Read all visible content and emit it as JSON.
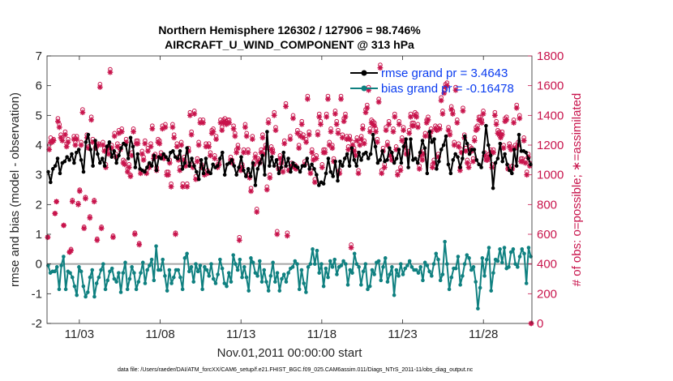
{
  "chart_data": {
    "type": "line",
    "title_line1": "Northern Hemisphere 126302 / 127906 = 98.746%",
    "title_line2": "AIRCRAFT_U_WIND_COMPONENT @ 313 hPa",
    "xlabel": "Nov.01,2011 00:00:00 start",
    "ylabel_left": "rmse and bias (model - observation)",
    "ylabel_right": "# of obs: o=possible; ∗=assimilated",
    "x_tick_labels": [
      "11/03",
      "11/08",
      "11/13",
      "11/18",
      "11/23",
      "11/28"
    ],
    "x_tick_days": [
      3,
      8,
      13,
      18,
      23,
      28
    ],
    "xlim": [
      1.0,
      31.0
    ],
    "ylim_left": [
      -2,
      7
    ],
    "y_ticks_left": [
      "-2",
      "-1",
      "0",
      "1",
      "2",
      "3",
      "4",
      "5",
      "6",
      "7"
    ],
    "ylim_right": [
      0,
      1800
    ],
    "y_ticks_right": [
      "0",
      "200",
      "400",
      "600",
      "800",
      "1000",
      "1200",
      "1400",
      "1600",
      "1800"
    ],
    "legend": {
      "position": "top-right",
      "rmse_label": "rmse grand pr = 3.4643",
      "bias_label": "bias grand pr = -0.16478"
    },
    "colors": {
      "rmse": "#000000",
      "bias": "#0f8080",
      "obs": "#c8144c",
      "zero_line": "#a6a6a6"
    },
    "footer": "data file: /Users/raeder/DAI/ATM_forcXX/CAM6_setup/f.e21.FHIST_BGC.f09_025.CAM6assim.011/Diags_NTrS_2011-11/obs_diag_output.nc",
    "series": [
      {
        "name": "rmse",
        "values": [
          3.1,
          2.75,
          3.2,
          3.3,
          3.55,
          3.05,
          3.4,
          3.45,
          3.6,
          3.5,
          3.7,
          3.4,
          3.75,
          3.85,
          3.5,
          3.1,
          4.1,
          4.35,
          3.85,
          3.3,
          4.15,
          3.7,
          3.4,
          3.55,
          3.3,
          3.95,
          4.1,
          3.6,
          3.8,
          3.4,
          3.65,
          3.9,
          4.05,
          4.0,
          3.55,
          4.25,
          3.95,
          3.25,
          3.7,
          3.2,
          3.15,
          3.1,
          3.25,
          3.4,
          3.3,
          3.65,
          3.15,
          3.6,
          3.55,
          3.7,
          3.6,
          3.5,
          3.75,
          3.8,
          3.6,
          3.55,
          3.8,
          3.2,
          3.4,
          3.9,
          3.3,
          3.55,
          3.3,
          3.1,
          2.85,
          3.5,
          3.05,
          3.55,
          3.1,
          3.05,
          3.35,
          3.25,
          3.3,
          3.55,
          3.75,
          3.0,
          3.35,
          3.4,
          3.5,
          3.3,
          3.0,
          3.25,
          3.6,
          3.15,
          2.95,
          3.2,
          2.95,
          3.4,
          2.65,
          3.2,
          3.4,
          3.65,
          3.0,
          4.45,
          3.3,
          3.6,
          3.3,
          3.5,
          3.05,
          3.25,
          3.75,
          3.3,
          3.55,
          3.1,
          3.4,
          3.3,
          3.25,
          3.1,
          3.3,
          3.3,
          3.55,
          3.2,
          3.35,
          3.2,
          3.0,
          2.65,
          2.75,
          2.7,
          3.05,
          3.55,
          3.1,
          2.95,
          3.45,
          2.8,
          3.45,
          3.3,
          3.55,
          3.7,
          3.3,
          3.9,
          3.5,
          3.3,
          3.75,
          3.5,
          3.7,
          3.75,
          3.55,
          3.7,
          4.35,
          3.95,
          3.4,
          3.5,
          3.8,
          3.45,
          3.5,
          3.9,
          3.75,
          3.4,
          3.55,
          3.85,
          3.4,
          3.95,
          4.2,
          3.25,
          4.2,
          3.5,
          3.55,
          3.4,
          3.75,
          4.15,
          3.9,
          3.05,
          4.45,
          4.1,
          4.2,
          3.2,
          3.45,
          3.85,
          4.0,
          4.3,
          3.35,
          3.05,
          3.5,
          3.7,
          3.6,
          3.25,
          3.55,
          4.3,
          4.05,
          3.7,
          3.85,
          3.85,
          3.5,
          3.35,
          3.25,
          3.75,
          4.65,
          4.0,
          3.65,
          2.55,
          3.4,
          3.55,
          4.05,
          3.45,
          3.7,
          3.35,
          3.15,
          3.05,
          3.85,
          3.3,
          4.35,
          3.8,
          3.8,
          3.75,
          3.55,
          3.35
        ]
      },
      {
        "name": "bias",
        "values": [
          -0.05,
          -0.3,
          -0.25,
          -0.25,
          -0.1,
          -0.85,
          -0.05,
          0.25,
          -0.85,
          -0.25,
          -0.3,
          -0.45,
          -0.75,
          -1.05,
          -0.1,
          -0.25,
          -0.75,
          -1.1,
          -0.95,
          -0.45,
          -0.2,
          -1.1,
          -0.65,
          -0.45,
          -0.2,
          0.0,
          -0.85,
          -0.55,
          -0.25,
          -0.15,
          -0.5,
          -0.6,
          -0.3,
          -0.95,
          -0.3,
          0.05,
          -0.85,
          -0.5,
          -0.1,
          -0.3,
          -0.85,
          -0.6,
          -0.3,
          0.05,
          -0.65,
          -0.2,
          -0.05,
          0.15,
          -0.55,
          0.6,
          -0.2,
          -0.2,
          0.15,
          -0.4,
          -0.9,
          -0.2,
          -0.65,
          -0.45,
          -0.2,
          -0.2,
          -0.45,
          -0.85,
          0.2,
          0.35,
          -0.25,
          -0.1,
          -0.6,
          0.0,
          -0.25,
          -0.05,
          -0.85,
          -0.1,
          -0.2,
          -0.4,
          0.0,
          -0.5,
          -0.65,
          -0.35,
          0.15,
          -0.15,
          -0.65,
          -0.75,
          -0.3,
          -0.6,
          0.3,
          0.0,
          -0.2,
          0.15,
          -0.45,
          -0.1,
          -0.45,
          -0.9,
          0.2,
          0.05,
          -0.3,
          -0.4,
          0.1,
          -0.6,
          -0.2,
          -0.6,
          -0.9,
          -0.4,
          0.05,
          -0.6,
          -0.3,
          -0.9,
          -0.5,
          -0.35,
          -0.6,
          -0.3,
          -0.15,
          -0.1,
          0.1,
          0.0,
          -0.85,
          -0.2,
          -0.65,
          -0.95,
          -0.1,
          0.0,
          0.5,
          0.0,
          0.45,
          -0.3,
          0.0,
          -0.75,
          -0.15,
          -0.45,
          0.1,
          -0.1,
          0.15,
          -0.35,
          -0.1,
          -0.05,
          0.1,
          0.0,
          -0.7,
          -0.2,
          -0.3,
          0.35,
          0.0,
          -0.1,
          -0.7,
          -0.25,
          0.0,
          -0.85,
          -0.75,
          -0.2,
          -0.35,
          0.05,
          0.1,
          -0.55,
          -0.1,
          0.2,
          -0.6,
          -0.35,
          -0.1,
          -1.05,
          -0.2,
          -0.4,
          0.0,
          -0.35,
          -0.15,
          -0.05,
          0.1,
          -0.1,
          -0.2,
          -0.2,
          -0.3,
          -0.1,
          -0.55,
          0.05,
          -0.05,
          -0.25,
          -0.4,
          0.0,
          0.35,
          0.15,
          -0.55,
          -0.35,
          0.75,
          0.0,
          -0.85,
          -0.45,
          -0.15,
          -0.15,
          0.25,
          -0.7,
          -0.4,
          0.0,
          0.3,
          0.2,
          -0.2,
          -0.1,
          -0.6,
          -1.5,
          -0.8,
          0.2,
          -0.4,
          0.15,
          0.55,
          -0.9,
          -0.3,
          0.15,
          0.1,
          0.5,
          0.05,
          0.55,
          -0.15,
          -0.1,
          0.4,
          0.5,
          0.0,
          -0.1,
          0.25,
          0.5,
          0.35,
          -0.65,
          0.55,
          0.25
        ]
      },
      {
        "name": "obs_assimilated",
        "values": [
          580,
          1170,
          1220,
          1220,
          1230,
          740,
          820,
          1360,
          1320,
          1250,
          1230,
          660,
          1270,
          1190,
          1220,
          480,
          490,
          820,
          1240,
          1200,
          1240,
          800,
          890,
          1200,
          1420,
          640,
          840,
          1250,
          1180,
          710,
          1370,
          1220,
          820,
          1180,
          560,
          1200,
          1590,
          640,
          1200,
          1160,
          1050,
          1170,
          1140,
          1690,
          1180,
          580,
          1260,
          1120,
          1190,
          1280,
          1170,
          1290,
          1080,
          1070,
          1220,
          1020,
          1050,
          990,
          1130,
          1290,
          600,
          1210,
          1210,
          530,
          1010,
          1140,
          1100,
          1210,
          1010,
          1160,
          1050,
          1190,
          1310,
          1110,
          1120,
          1030,
          1220,
          1210,
          1130,
          1310,
          1110,
          1320,
          1000,
          1000,
          1080,
          920,
          1320,
          1250,
          600,
          1190,
          1100,
          1030,
          1200,
          920,
          1100,
          1060,
          920,
          1160,
          1400,
          1270,
          1050,
          1410,
          970,
          1090,
          1200,
          1350,
          1050,
          1350,
          1000,
          1190,
          1010,
          1190,
          1130,
          1280,
          1290,
          1110,
          1240,
          1050,
          1070,
          1350,
          1300,
          1350,
          1360,
          1340,
          1350,
          1350,
          1100,
          1080,
          1310,
          1260,
          1150,
          1180,
          560,
          1030,
          1050,
          1150,
          1320,
          1260,
          1150,
          980,
          890,
          1240,
          1070,
          1120,
          750,
          1090,
          1080,
          1150,
          1250,
          1140,
          1180,
          900,
          1350,
          980,
          1170,
          1150,
          1400,
          1300,
          600,
          1040,
          1110,
          1080,
          1020,
          1210,
          1460,
          590,
          1030,
          1240,
          1060,
          1380,
          1050,
          1040,
          1280,
          1180,
          1260,
          1340,
          1250,
          1070,
          1220,
          1510,
          1270,
          1010,
          1150,
          1100,
          950,
          1110,
          1270,
          1390,
          1340,
          1050,
          1150,
          1150,
          1390,
          1510,
          1200,
          1290,
          1180,
          1090,
          1410,
          1340,
          1280,
          1010,
          1510,
          1250,
          1360,
          1390,
          1240,
          1170,
          1240,
          510,
          1200,
          1160,
          1130,
          1230,
          1010,
          1200,
          1240,
          1310,
          1210,
          1420,
          1450,
          1570,
          1290,
          1350,
          1340,
          1330,
          1290,
          1220,
          1490,
          1720,
          1010,
          1160,
          1050,
          1300,
          1200,
          1340,
          1130,
          1100,
          1290,
          1390,
          1170,
          1000,
          1340,
          1030,
          1230,
          1300,
          1190,
          1140,
          1140,
          1280,
          1390,
          1330,
          1330,
          1400,
          1390,
          1320,
          1040,
          1130,
          1100,
          1140,
          1260,
          1350,
          1370,
          1260,
          1290,
          1050,
          1080,
          1310,
          1300,
          1120,
          1310,
          1500,
          1410,
          1550,
          1590,
          1600,
          1300,
          1270,
          1440,
          1410,
          1200,
          1570,
          1350,
          1190,
          1030,
          1150,
          1430,
          1250,
          1160,
          1080,
          1050,
          1170,
          1160,
          1090,
          1230,
          1300,
          1310,
          1370,
          1370,
          1350,
          1410,
          1130,
          1100,
          1100,
          1120,
          1150,
          1050,
          1150,
          1400,
          1340,
          1280,
          1270,
          1250,
          1270,
          1180,
          1360,
          1370,
          1040,
          1190,
          1170,
          1040,
          1350,
          1180,
          1450,
          1200,
          1380,
          1090,
          1090,
          1230,
          1080,
          1000,
          1120,
          1060,
          0
        ]
      },
      {
        "name": "obs_possible",
        "values": [
          580,
          1200,
          1250,
          1230,
          1240,
          740,
          820,
          1380,
          1340,
          1270,
          1250,
          660,
          1290,
          1210,
          1240,
          480,
          500,
          830,
          1260,
          1220,
          1260,
          810,
          900,
          1220,
          1440,
          650,
          850,
          1270,
          1190,
          720,
          1390,
          1240,
          830,
          1190,
          570,
          1210,
          1610,
          650,
          1220,
          1180,
          1070,
          1190,
          1160,
          1710,
          1200,
          590,
          1280,
          1140,
          1210,
          1300,
          1190,
          1310,
          1100,
          1090,
          1240,
          1040,
          1070,
          1000,
          1150,
          1310,
          610,
          1230,
          1230,
          540,
          1030,
          1160,
          1120,
          1230,
          1030,
          1180,
          1070,
          1210,
          1330,
          1130,
          1140,
          1050,
          1240,
          1230,
          1150,
          1330,
          1130,
          1340,
          1020,
          1020,
          1100,
          940,
          1340,
          1270,
          610,
          1210,
          1120,
          1050,
          1220,
          940,
          1120,
          1080,
          940,
          1180,
          1420,
          1290,
          1070,
          1430,
          990,
          1110,
          1220,
          1370,
          1070,
          1370,
          1020,
          1210,
          1030,
          1210,
          1150,
          1300,
          1310,
          1130,
          1260,
          1070,
          1090,
          1370,
          1320,
          1370,
          1380,
          1360,
          1370,
          1370,
          1120,
          1100,
          1330,
          1280,
          1170,
          1200,
          580,
          1050,
          1070,
          1170,
          1340,
          1280,
          1170,
          1000,
          910,
          1260,
          1090,
          1140,
          770,
          1110,
          1100,
          1170,
          1270,
          1160,
          1200,
          920,
          1370,
          1000,
          1190,
          1170,
          1420,
          1320,
          620,
          1060,
          1130,
          1100,
          1040,
          1230,
          1480,
          610,
          1050,
          1260,
          1080,
          1400,
          1070,
          1060,
          1300,
          1200,
          1280,
          1360,
          1270,
          1090,
          1240,
          1530,
          1290,
          1030,
          1170,
          1120,
          970,
          1130,
          1290,
          1410,
          1360,
          1070,
          1170,
          1170,
          1410,
          1530,
          1220,
          1310,
          1200,
          1110,
          1430,
          1360,
          1300,
          1030,
          1530,
          1270,
          1380,
          1410,
          1260,
          1190,
          1260,
          530,
          1220,
          1180,
          1150,
          1250,
          1030,
          1220,
          1260,
          1330,
          1230,
          1440,
          1470,
          1590,
          1310,
          1370,
          1360,
          1350,
          1310,
          1240,
          1510,
          1740,
          1030,
          1180,
          1070,
          1320,
          1220,
          1360,
          1150,
          1120,
          1310,
          1410,
          1190,
          1020,
          1360,
          1050,
          1250,
          1320,
          1210,
          1160,
          1160,
          1300,
          1410,
          1350,
          1350,
          1420,
          1410,
          1340,
          1060,
          1150,
          1120,
          1160,
          1280,
          1370,
          1390,
          1280,
          1310,
          1070,
          1100,
          1330,
          1320,
          1140,
          1330,
          1520,
          1430,
          1570,
          1610,
          1620,
          1320,
          1290,
          1460,
          1430,
          1220,
          1590,
          1370,
          1210,
          1050,
          1170,
          1450,
          1270,
          1180,
          1100,
          1070,
          1190,
          1180,
          1110,
          1250,
          1320,
          1330,
          1390,
          1390,
          1370,
          1430,
          1150,
          1120,
          1120,
          1140,
          1170,
          1070,
          1170,
          1420,
          1360,
          1300,
          1290,
          1270,
          1290,
          1200,
          1380,
          1390,
          1060,
          1210,
          1190,
          1060,
          1370,
          1200,
          1470,
          1220,
          1400,
          1110,
          1110,
          1250,
          1100,
          1020,
          1140,
          1080,
          0
        ]
      }
    ]
  }
}
